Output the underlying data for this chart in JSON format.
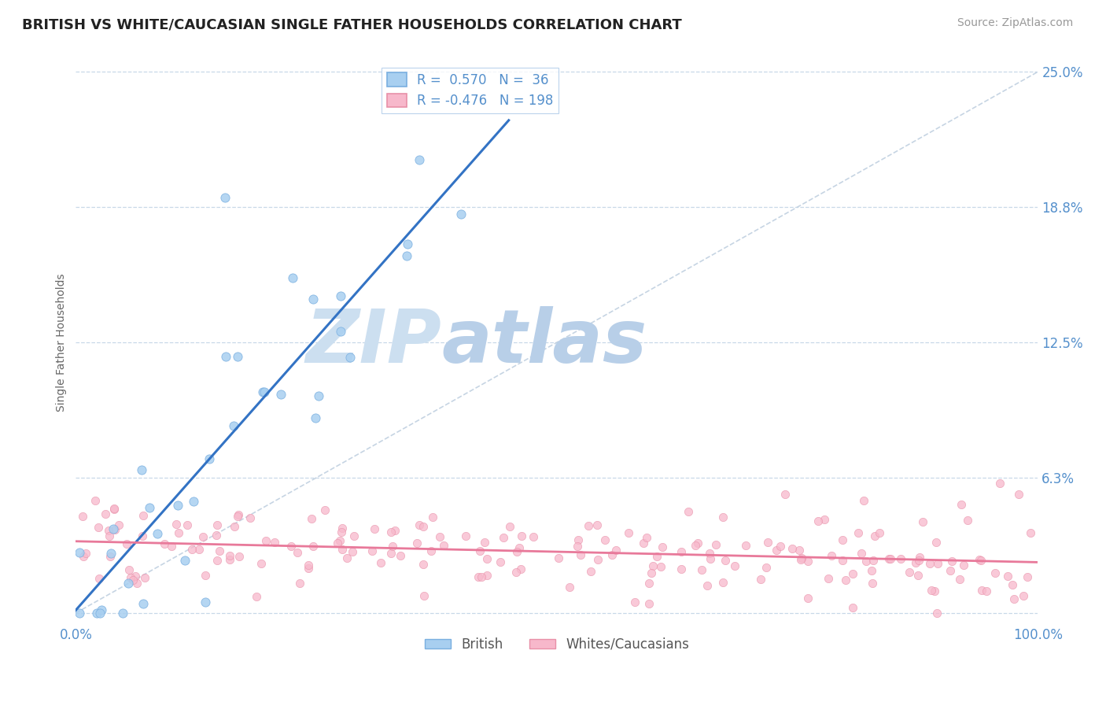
{
  "title": "BRITISH VS WHITE/CAUCASIAN SINGLE FATHER HOUSEHOLDS CORRELATION CHART",
  "source": "Source: ZipAtlas.com",
  "ylabel": "Single Father Households",
  "xmin": 0.0,
  "xmax": 1.0,
  "ymin": -0.005,
  "ymax": 0.255,
  "yticks": [
    0.0,
    0.0625,
    0.125,
    0.1875,
    0.25
  ],
  "ytick_labels": [
    "",
    "6.3%",
    "12.5%",
    "18.8%",
    "25.0%"
  ],
  "xticks": [
    0.0,
    0.25,
    0.5,
    0.75,
    1.0
  ],
  "xtick_labels": [
    "0.0%",
    "",
    "",
    "",
    "100.0%"
  ],
  "british_R": 0.57,
  "british_N": 36,
  "caucasian_R": -0.476,
  "caucasian_N": 198,
  "british_color": "#a8cff0",
  "british_edge_color": "#7aafe0",
  "caucasian_color": "#f7b8cb",
  "caucasian_edge_color": "#e890a8",
  "british_line_color": "#3373c4",
  "caucasian_line_color": "#e8799a",
  "diag_color": "#c0d0e0",
  "grid_color": "#c8d8e8",
  "background_color": "#ffffff",
  "watermark_zip_color": "#ccdff0",
  "watermark_atlas_color": "#b8cfe8",
  "title_fontsize": 13,
  "legend_fontsize": 12,
  "tick_color": "#5590cc"
}
